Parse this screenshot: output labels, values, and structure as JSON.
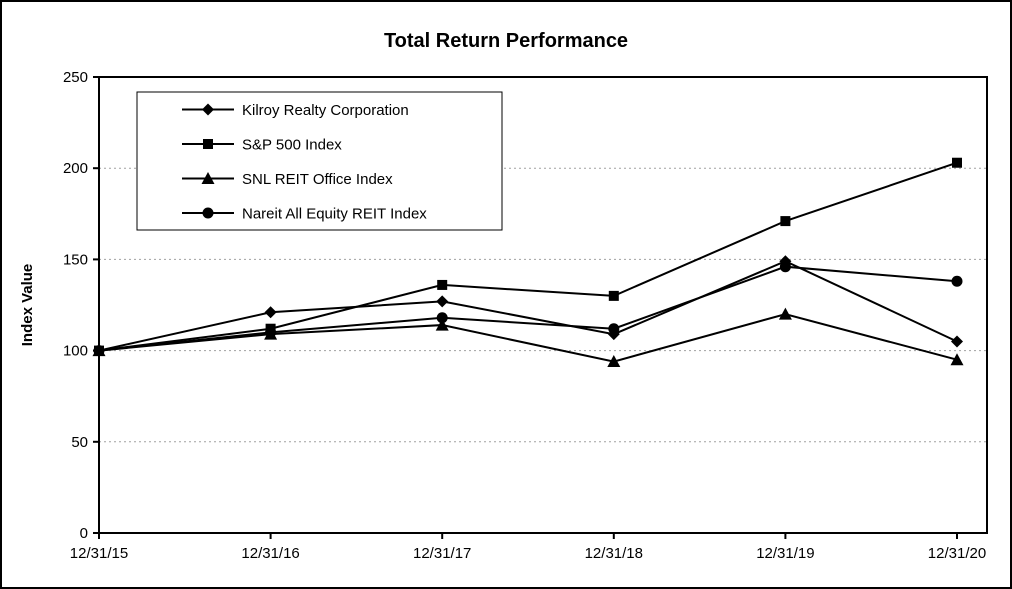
{
  "chart_data": {
    "type": "line",
    "title": "Total Return Performance",
    "xlabel": "",
    "ylabel": "Index Value",
    "ylim": [
      0,
      250
    ],
    "yticks": [
      0,
      50,
      100,
      150,
      200,
      250
    ],
    "grid": "horizontal-dashed",
    "legend_position": "top-left-inside",
    "categories": [
      "12/31/15",
      "12/31/16",
      "12/31/17",
      "12/31/18",
      "12/31/19",
      "12/31/20"
    ],
    "series": [
      {
        "name": "Kilroy Realty Corporation",
        "marker": "diamond",
        "values": [
          100,
          121,
          127,
          109,
          149,
          105
        ]
      },
      {
        "name": "S&P 500 Index",
        "marker": "square",
        "values": [
          100,
          112,
          136,
          130,
          171,
          203
        ]
      },
      {
        "name": "SNL REIT Office Index",
        "marker": "triangle",
        "values": [
          100,
          109,
          114,
          94,
          120,
          95
        ]
      },
      {
        "name": "Nareit All Equity REIT Index",
        "marker": "circle",
        "values": [
          100,
          110,
          118,
          112,
          146,
          138
        ]
      }
    ],
    "colors": {
      "line": "#000000",
      "marker": "#000000",
      "grid": "#a0a0a0",
      "axis": "#000000",
      "background": "#ffffff",
      "border": "#000000"
    }
  }
}
